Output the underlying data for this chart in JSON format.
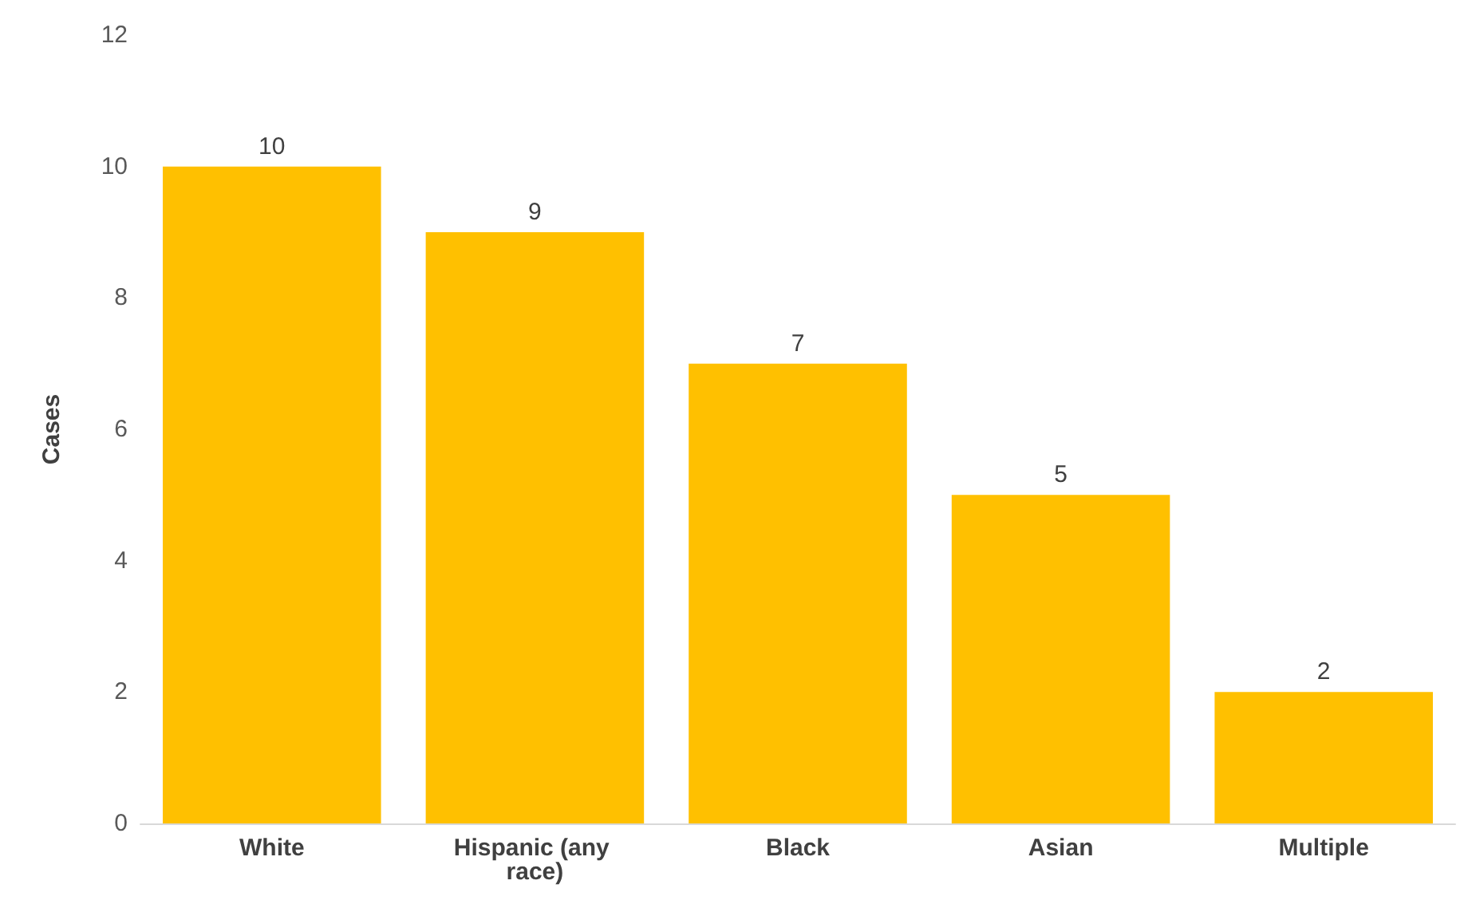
{
  "chart_data": {
    "type": "bar",
    "ylabel": "Cases",
    "categories": [
      "White",
      "Hispanic (any race)",
      "Black",
      "Asian",
      "Multiple"
    ],
    "values": [
      10,
      9,
      7,
      5,
      2
    ],
    "color": "#ffc000",
    "ylim": [
      0,
      12
    ],
    "yticks": [
      0,
      2,
      4,
      6,
      8,
      10,
      12
    ],
    "grid": false,
    "data_labels": true
  }
}
